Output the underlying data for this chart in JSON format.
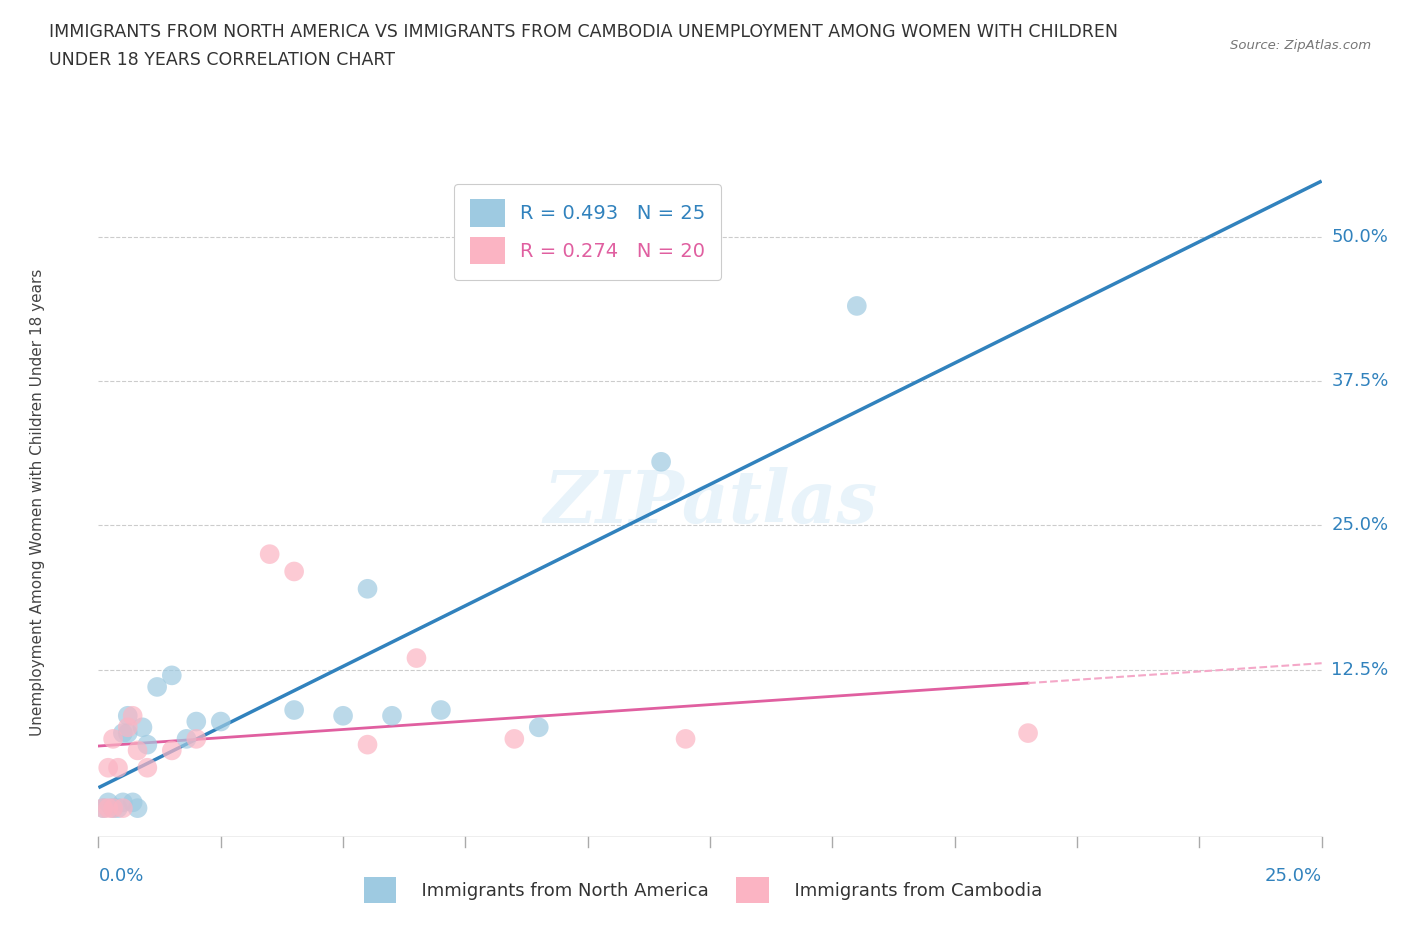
{
  "title_line1": "IMMIGRANTS FROM NORTH AMERICA VS IMMIGRANTS FROM CAMBODIA UNEMPLOYMENT AMONG WOMEN WITH CHILDREN",
  "title_line2": "UNDER 18 YEARS CORRELATION CHART",
  "source": "Source: ZipAtlas.com",
  "ylabel": "Unemployment Among Women with Children Under 18 years",
  "ytick_labels": [
    "12.5%",
    "25.0%",
    "37.5%",
    "50.0%"
  ],
  "ytick_values": [
    0.125,
    0.25,
    0.375,
    0.5
  ],
  "xtick_labels": [
    "0.0%",
    "25.0%"
  ],
  "xlim": [
    0.0,
    0.25
  ],
  "ylim": [
    -0.02,
    0.56
  ],
  "legend_r1": "R = 0.493",
  "legend_n1": "N = 25",
  "legend_r2": "R = 0.274",
  "legend_n2": "N = 20",
  "color_blue": "#9ecae1",
  "color_pink": "#fbb4c3",
  "color_blue_line": "#3182bd",
  "color_pink_line": "#e05fa0",
  "color_pink_line_dash": "#f4a8c8",
  "watermark": "ZIPatlas",
  "north_america_x": [
    0.001,
    0.002,
    0.003,
    0.004,
    0.005,
    0.005,
    0.006,
    0.006,
    0.007,
    0.008,
    0.009,
    0.01,
    0.012,
    0.015,
    0.018,
    0.02,
    0.025,
    0.04,
    0.05,
    0.055,
    0.06,
    0.07,
    0.09,
    0.115,
    0.155
  ],
  "north_america_y": [
    0.005,
    0.01,
    0.005,
    0.005,
    0.07,
    0.01,
    0.085,
    0.07,
    0.01,
    0.005,
    0.075,
    0.06,
    0.11,
    0.12,
    0.065,
    0.08,
    0.08,
    0.09,
    0.085,
    0.195,
    0.085,
    0.09,
    0.075,
    0.305,
    0.44
  ],
  "cambodia_x": [
    0.001,
    0.002,
    0.002,
    0.003,
    0.003,
    0.004,
    0.005,
    0.006,
    0.007,
    0.008,
    0.01,
    0.015,
    0.02,
    0.035,
    0.04,
    0.055,
    0.065,
    0.085,
    0.12,
    0.19
  ],
  "cambodia_y": [
    0.005,
    0.04,
    0.005,
    0.065,
    0.005,
    0.04,
    0.005,
    0.075,
    0.085,
    0.055,
    0.04,
    0.055,
    0.065,
    0.225,
    0.21,
    0.06,
    0.135,
    0.065,
    0.065,
    0.07
  ]
}
